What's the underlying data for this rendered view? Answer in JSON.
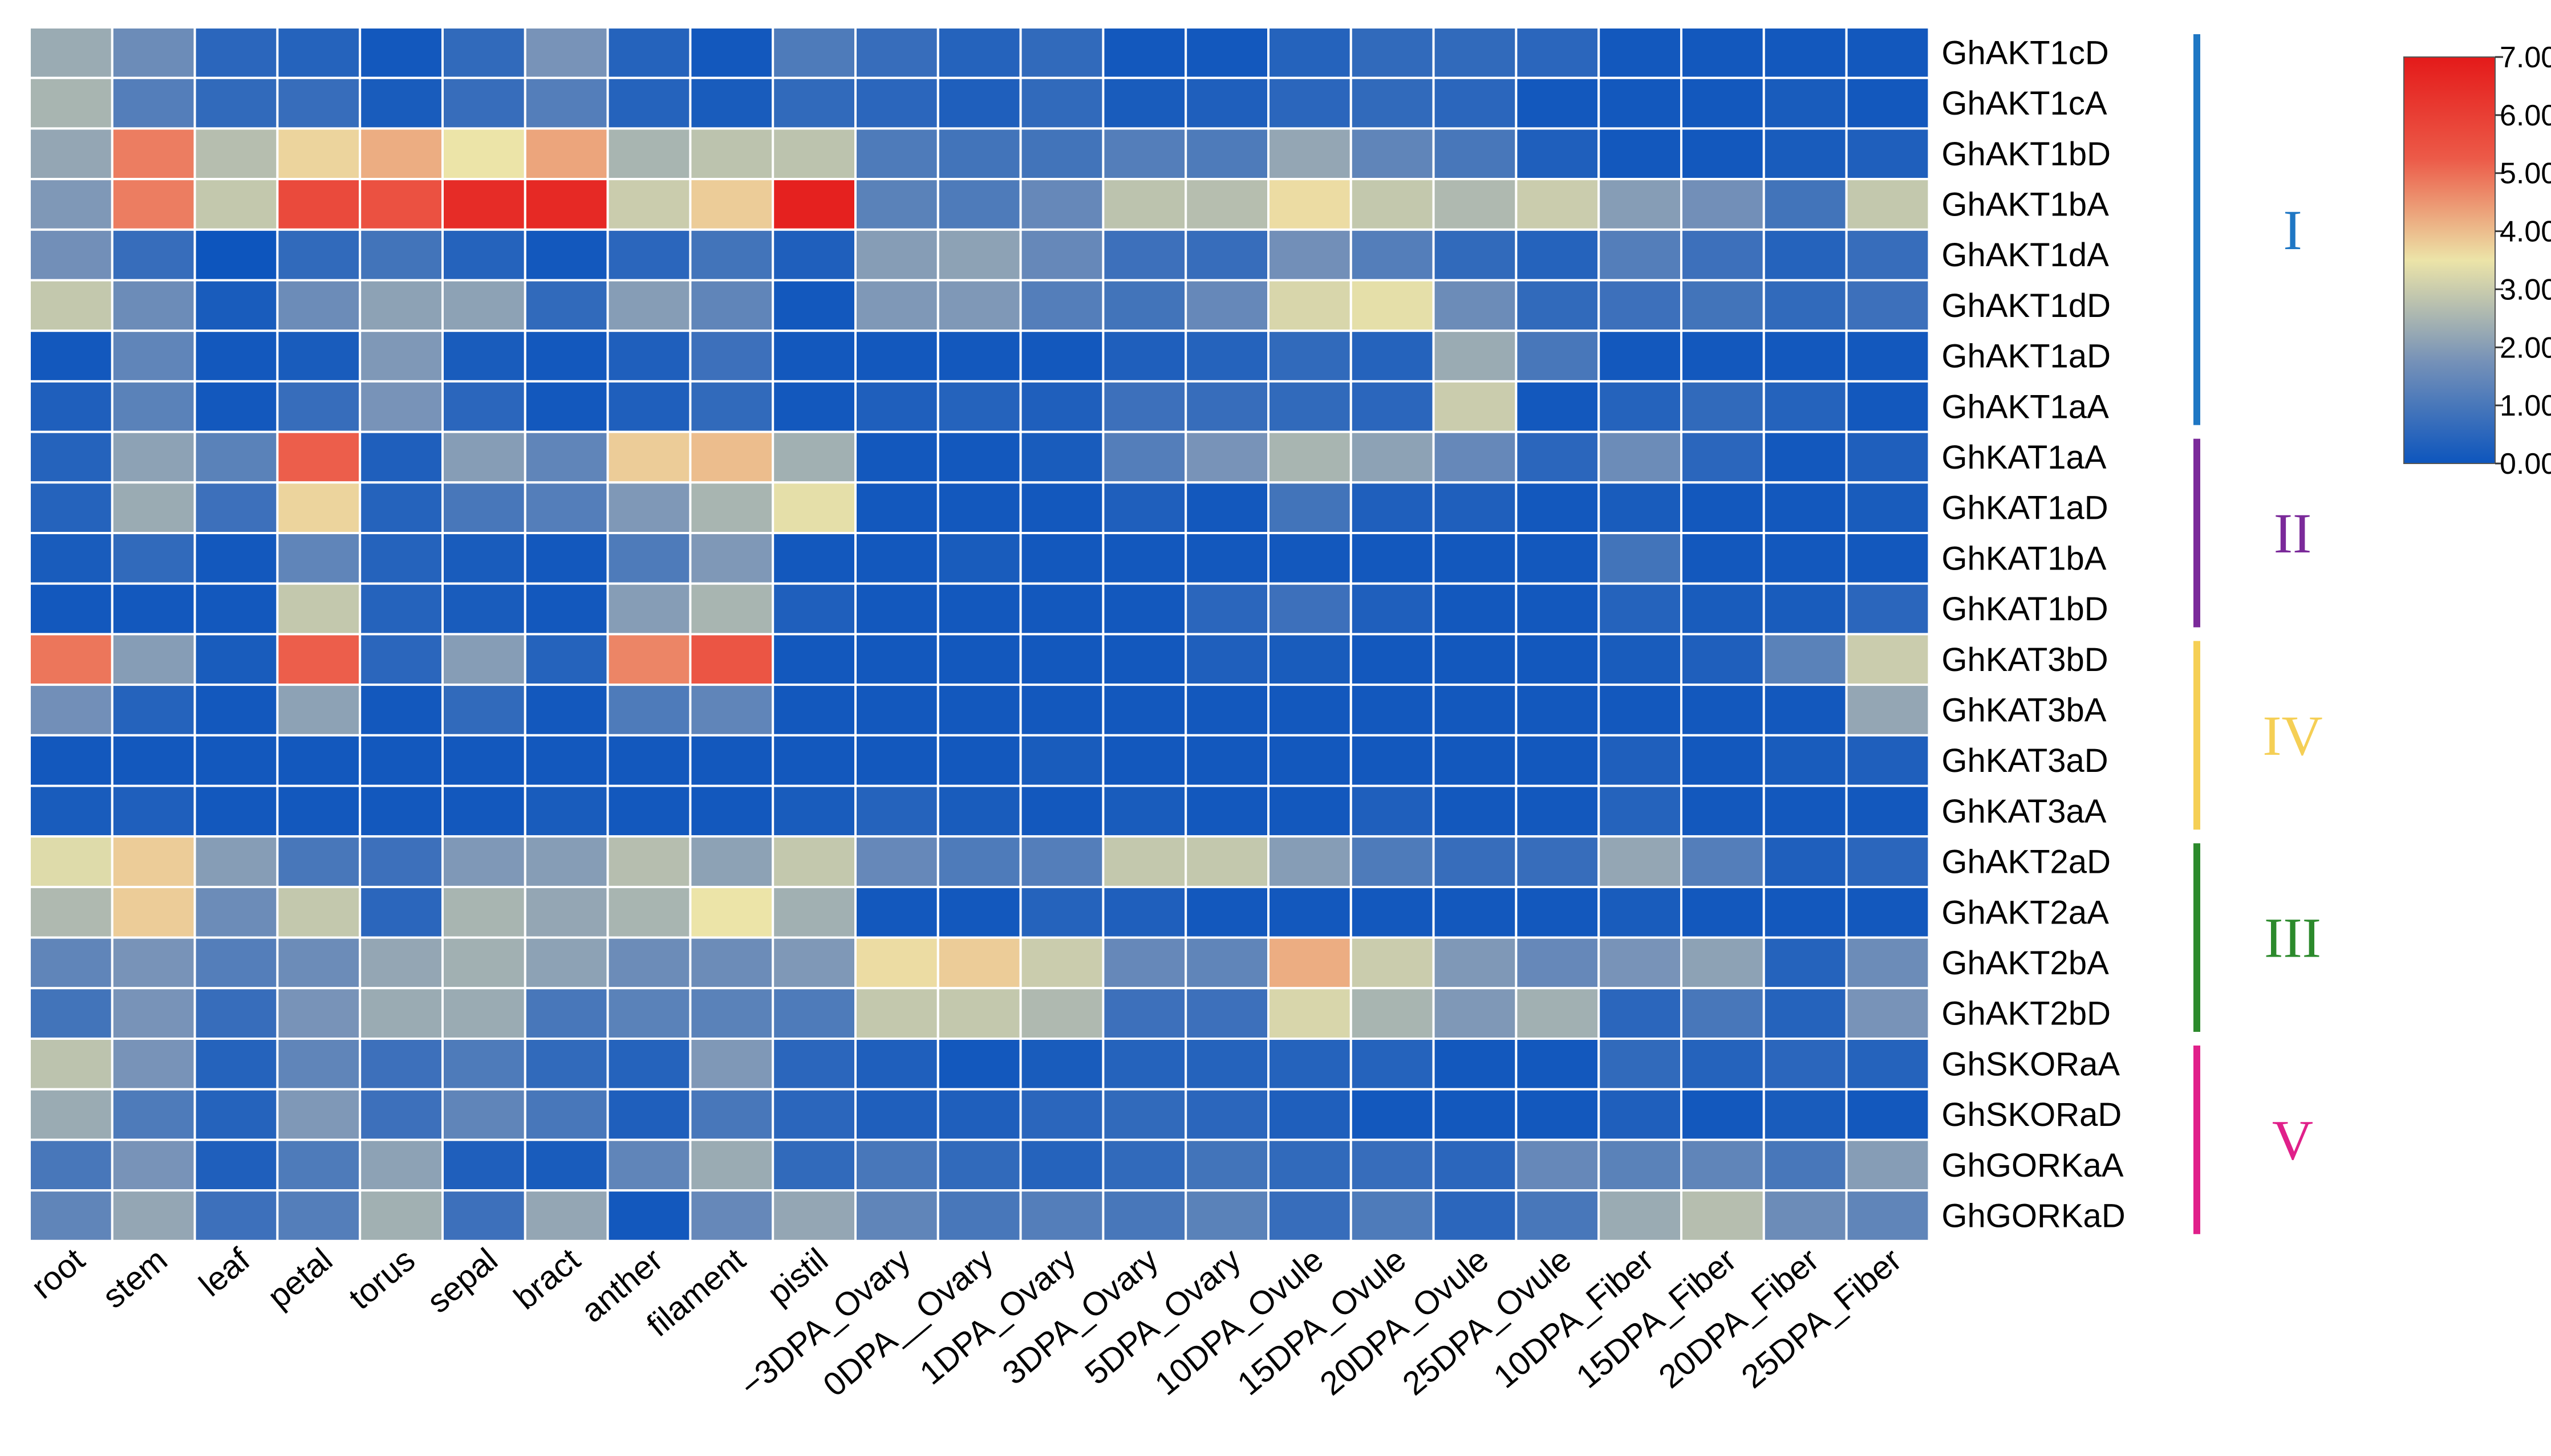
{
  "chart_data": {
    "type": "heatmap",
    "title": "",
    "columns": [
      "root",
      "stem",
      "leaf",
      "petal",
      "torus",
      "sepal",
      "bract",
      "anther",
      "filament",
      "pistil",
      "−3DPA_Ovary",
      "0DPA__Ovary",
      "1DPA_Ovary",
      "3DPA_Ovary",
      "5DPA_Ovary",
      "10DPA_Ovule",
      "15DPA_Ovule",
      "20DPA_Ovule",
      "25DPA_Ovule",
      "10DPA_Fiber",
      "15DPA_Fiber",
      "20DPA_Fiber",
      "25DPA_Fiber"
    ],
    "rows": [
      "GhAKT1cD",
      "GhAKT1cA",
      "GhAKT1bD",
      "GhAKT1bA",
      "GhAKT1dA",
      "GhAKT1dD",
      "GhAKT1aD",
      "GhAKT1aA",
      "GhKAT1aA",
      "GhKAT1aD",
      "GhKAT1bA",
      "GhKAT1bD",
      "GhKAT3bD",
      "GhKAT3bA",
      "GhKAT3aD",
      "GhKAT3aA",
      "GhAKT2aD",
      "GhAKT2aA",
      "GhAKT2bA",
      "GhAKT2bD",
      "GhSKORaA",
      "GhSKORaD",
      "GhGORKaA",
      "GhGORKaD"
    ],
    "values": [
      [
        2.3,
        1.6,
        0.5,
        0.4,
        0.1,
        0.6,
        1.8,
        0.4,
        0.1,
        1.1,
        0.7,
        0.4,
        0.6,
        0.1,
        0.1,
        0.4,
        0.6,
        0.6,
        0.5,
        0.1,
        0.1,
        0.1,
        0.1
      ],
      [
        2.5,
        1.2,
        0.6,
        0.7,
        0.2,
        0.7,
        1.2,
        0.4,
        0.2,
        0.6,
        0.5,
        0.3,
        0.6,
        0.2,
        0.3,
        0.5,
        0.6,
        0.5,
        0.1,
        0.1,
        0.1,
        0.2,
        0.1
      ],
      [
        2.2,
        4.8,
        2.7,
        3.7,
        4.2,
        3.5,
        4.3,
        2.5,
        2.8,
        2.8,
        1.1,
        0.9,
        0.9,
        1.2,
        1.1,
        2.2,
        1.4,
        1.0,
        0.3,
        0.1,
        0.1,
        0.2,
        0.3
      ],
      [
        1.9,
        4.8,
        2.9,
        5.7,
        5.5,
        6.5,
        6.6,
        3.0,
        3.8,
        6.8,
        1.3,
        1.1,
        1.5,
        2.8,
        2.7,
        3.6,
        2.9,
        2.6,
        3.0,
        2.0,
        1.7,
        0.9,
        2.9
      ],
      [
        1.7,
        0.7,
        0.0,
        0.6,
        0.9,
        0.4,
        0.1,
        0.5,
        0.9,
        0.3,
        2.0,
        2.1,
        1.5,
        0.8,
        0.7,
        1.7,
        1.2,
        0.6,
        0.4,
        1.2,
        0.8,
        0.4,
        0.7
      ],
      [
        2.9,
        1.6,
        0.2,
        1.6,
        2.1,
        2.1,
        0.6,
        2.0,
        1.4,
        0.1,
        1.9,
        1.9,
        1.2,
        0.9,
        1.5,
        3.2,
        3.4,
        1.6,
        0.6,
        0.8,
        0.9,
        0.6,
        0.8
      ],
      [
        0.1,
        1.4,
        0.1,
        0.2,
        1.9,
        0.2,
        0.1,
        0.3,
        0.8,
        0.1,
        0.1,
        0.1,
        0.1,
        0.3,
        0.4,
        0.6,
        0.4,
        2.3,
        1.0,
        0.1,
        0.1,
        0.1,
        0.1
      ],
      [
        0.3,
        1.3,
        0.1,
        0.7,
        1.8,
        0.5,
        0.1,
        0.3,
        0.6,
        0.1,
        0.3,
        0.4,
        0.3,
        0.8,
        0.7,
        0.6,
        0.5,
        3.0,
        0.1,
        0.4,
        0.6,
        0.4,
        0.1
      ],
      [
        0.4,
        2.1,
        1.3,
        5.2,
        0.3,
        2.0,
        1.4,
        3.8,
        4.0,
        2.4,
        0.1,
        0.1,
        0.2,
        1.2,
        1.8,
        2.5,
        2.1,
        1.5,
        0.5,
        1.6,
        0.5,
        0.1,
        0.3
      ],
      [
        0.4,
        2.3,
        0.8,
        3.7,
        0.4,
        1.0,
        1.2,
        1.9,
        2.5,
        3.4,
        0.1,
        0.1,
        0.1,
        0.3,
        0.1,
        0.9,
        0.3,
        0.3,
        0.1,
        0.2,
        0.1,
        0.1,
        0.2
      ],
      [
        0.2,
        0.6,
        0.1,
        1.4,
        0.4,
        0.2,
        0.1,
        1.1,
        1.9,
        0.1,
        0.1,
        0.2,
        0.1,
        0.1,
        0.1,
        0.1,
        0.1,
        0.1,
        0.1,
        0.9,
        0.1,
        0.1,
        0.1
      ],
      [
        0.1,
        0.1,
        0.1,
        2.9,
        0.4,
        0.2,
        0.1,
        2.0,
        2.5,
        0.3,
        0.1,
        0.1,
        0.1,
        0.1,
        0.5,
        0.8,
        0.3,
        0.1,
        0.1,
        0.4,
        0.2,
        0.2,
        0.5
      ],
      [
        4.9,
        2.0,
        0.2,
        5.2,
        0.5,
        2.0,
        0.4,
        4.7,
        5.4,
        0.1,
        0.1,
        0.1,
        0.1,
        0.1,
        0.3,
        0.2,
        0.1,
        0.1,
        0.1,
        0.2,
        0.3,
        1.3,
        3.0
      ],
      [
        1.7,
        0.4,
        0.1,
        2.1,
        0.1,
        0.6,
        0.1,
        1.1,
        1.4,
        0.1,
        0.1,
        0.1,
        0.1,
        0.1,
        0.1,
        0.1,
        0.1,
        0.1,
        0.1,
        0.1,
        0.1,
        0.1,
        2.2
      ],
      [
        0.1,
        0.1,
        0.1,
        0.1,
        0.1,
        0.1,
        0.1,
        0.1,
        0.1,
        0.1,
        0.1,
        0.1,
        0.2,
        0.1,
        0.1,
        0.1,
        0.1,
        0.1,
        0.1,
        0.3,
        0.1,
        0.2,
        0.3
      ],
      [
        0.2,
        0.3,
        0.1,
        0.1,
        0.1,
        0.1,
        0.2,
        0.1,
        0.1,
        0.2,
        0.4,
        0.2,
        0.1,
        0.2,
        0.1,
        0.1,
        0.3,
        0.1,
        0.1,
        0.4,
        0.1,
        0.1,
        0.1
      ],
      [
        3.3,
        3.8,
        2.0,
        1.0,
        0.8,
        1.9,
        2.0,
        2.7,
        2.1,
        2.9,
        1.5,
        1.1,
        1.2,
        2.9,
        2.9,
        2.0,
        1.1,
        0.7,
        0.7,
        2.2,
        1.2,
        0.3,
        0.5
      ],
      [
        2.6,
        3.8,
        1.6,
        2.9,
        0.5,
        2.5,
        2.2,
        2.5,
        3.5,
        2.4,
        0.1,
        0.1,
        0.4,
        0.3,
        0.1,
        0.1,
        0.1,
        0.1,
        0.1,
        0.2,
        0.1,
        0.1,
        0.1
      ],
      [
        1.4,
        1.8,
        1.2,
        1.6,
        2.2,
        2.4,
        2.1,
        1.6,
        1.6,
        1.9,
        3.6,
        3.8,
        3.0,
        1.5,
        1.4,
        4.2,
        3.0,
        1.9,
        1.5,
        1.8,
        2.1,
        0.4,
        1.6
      ],
      [
        0.9,
        1.8,
        0.7,
        1.8,
        2.3,
        2.3,
        1.0,
        1.3,
        1.3,
        1.1,
        2.9,
        2.9,
        2.6,
        0.8,
        0.8,
        3.2,
        2.5,
        1.9,
        2.4,
        0.5,
        1.0,
        0.4,
        1.8
      ],
      [
        2.8,
        1.8,
        0.4,
        1.4,
        0.8,
        1.1,
        0.6,
        0.4,
        1.9,
        0.5,
        0.3,
        0.1,
        0.2,
        0.4,
        0.4,
        0.4,
        0.4,
        0.1,
        0.1,
        0.6,
        0.4,
        0.5,
        0.4
      ],
      [
        2.3,
        1.1,
        0.4,
        1.9,
        0.8,
        1.4,
        1.0,
        0.3,
        1.0,
        0.5,
        0.3,
        0.3,
        0.5,
        0.6,
        0.5,
        0.3,
        0.1,
        0.1,
        0.1,
        0.3,
        0.1,
        0.2,
        0.1
      ],
      [
        1.0,
        1.8,
        0.3,
        1.1,
        2.1,
        0.3,
        0.2,
        1.4,
        2.3,
        0.6,
        1.0,
        0.6,
        0.4,
        0.6,
        0.9,
        0.6,
        0.7,
        0.5,
        1.5,
        1.3,
        1.4,
        1.0,
        2.0
      ],
      [
        1.4,
        2.2,
        0.8,
        1.2,
        2.4,
        0.8,
        2.2,
        0.1,
        1.5,
        2.2,
        1.4,
        1.0,
        1.2,
        1.0,
        1.3,
        0.7,
        1.1,
        0.5,
        1.0,
        2.3,
        2.7,
        1.6,
        1.4
      ]
    ],
    "groups": [
      {
        "label": "I",
        "color": "#1f77c4",
        "row_start": 0,
        "row_end": 7
      },
      {
        "label": "II",
        "color": "#7b2a9a",
        "row_start": 8,
        "row_end": 11
      },
      {
        "label": "IV",
        "color": "#f5cf55",
        "row_start": 12,
        "row_end": 15
      },
      {
        "label": "III",
        "color": "#2c8a2c",
        "row_start": 16,
        "row_end": 19
      },
      {
        "label": "V",
        "color": "#e0208a",
        "row_start": 20,
        "row_end": 23
      }
    ],
    "colorbar": {
      "range": [
        0,
        7
      ],
      "ticks": [
        "0.00",
        "1.00",
        "2.00",
        "3.00",
        "4.00",
        "5.00",
        "6.00",
        "7.00"
      ],
      "stops": [
        "#0d55bd",
        "#7591b8",
        "#ece4a8",
        "#ec5a48",
        "#e41a1a"
      ]
    }
  }
}
